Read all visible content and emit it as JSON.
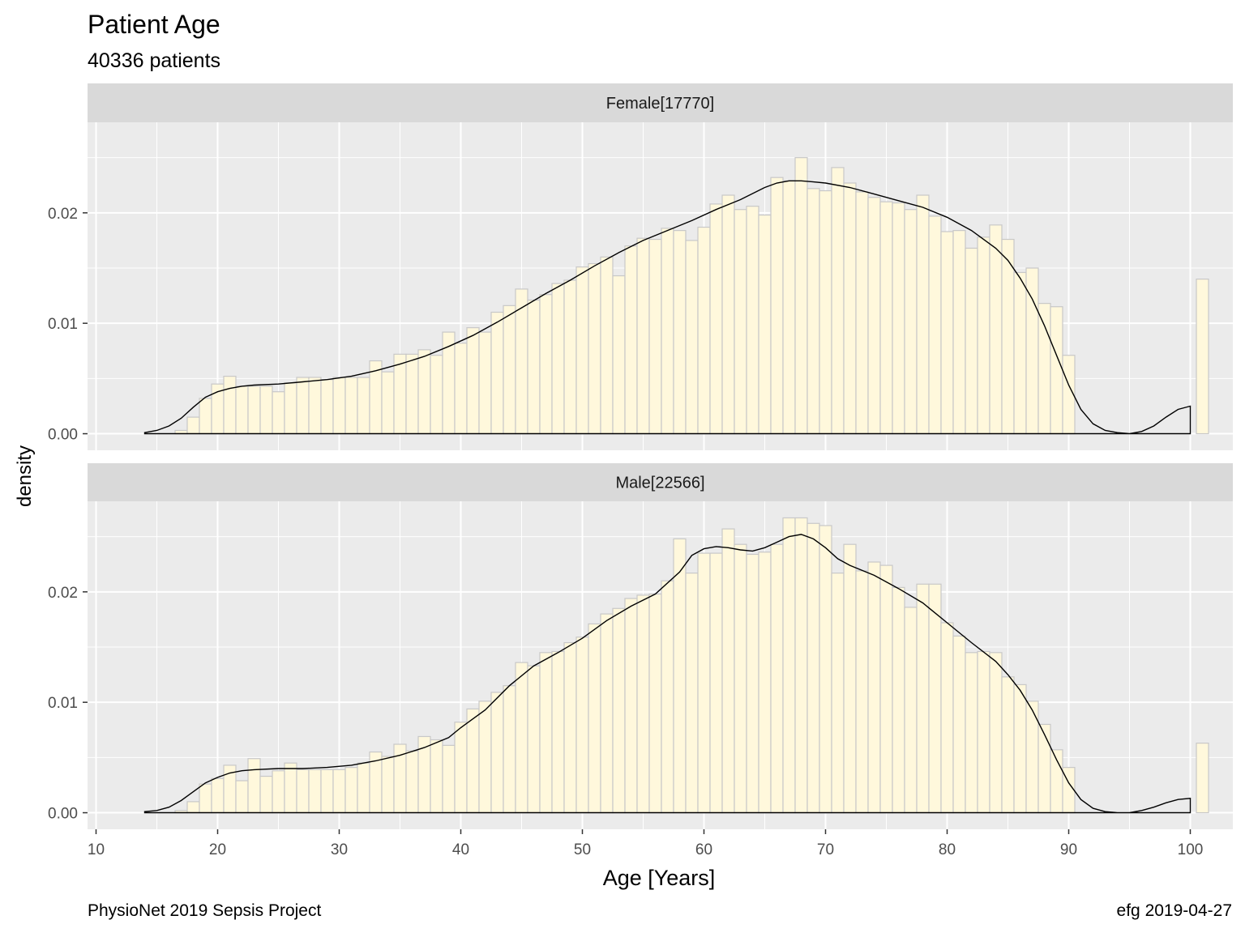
{
  "title": "Patient Age",
  "subtitle": "40336 patients",
  "caption_left": "PhysioNet 2019 Sepsis Project",
  "caption_right": "efg 2019-04-27",
  "colors": {
    "panel_bg": "#ebebeb",
    "strip_bg": "#d9d9d9",
    "bar_fill": "#fff8dc",
    "bar_stroke": "#c8c8c8",
    "grid": "#ffffff",
    "density_line": "#000000"
  },
  "chart_data": {
    "type": "bar",
    "subtype": "histogram-with-density",
    "xlabel": "Age [Years]",
    "ylabel": "density",
    "xlim": [
      9.3,
      103.5
    ],
    "x_ticks": [
      10,
      20,
      30,
      40,
      50,
      60,
      70,
      80,
      90,
      100
    ],
    "x_tick_labels": [
      "10",
      "20",
      "30",
      "40",
      "50",
      "60",
      "70",
      "80",
      "90",
      "100"
    ],
    "y_ticks": [
      0,
      0.01,
      0.02
    ],
    "y_tick_labels": [
      "0.00",
      "0.01",
      "0.02"
    ],
    "grid": true,
    "bin_width": 1,
    "panels": [
      {
        "label": "Female[17770]",
        "ylim": [
          -0.0015,
          0.0282
        ],
        "bins": [
          [
            17,
            0.0003
          ],
          [
            18,
            0.0015
          ],
          [
            19,
            0.0032
          ],
          [
            20,
            0.0045
          ],
          [
            21,
            0.0052
          ],
          [
            22,
            0.0043
          ],
          [
            23,
            0.0043
          ],
          [
            24,
            0.0043
          ],
          [
            25,
            0.0038
          ],
          [
            26,
            0.0046
          ],
          [
            27,
            0.0051
          ],
          [
            28,
            0.0051
          ],
          [
            29,
            0.0049
          ],
          [
            30,
            0.0051
          ],
          [
            31,
            0.0051
          ],
          [
            32,
            0.0051
          ],
          [
            33,
            0.0066
          ],
          [
            34,
            0.0056
          ],
          [
            35,
            0.0072
          ],
          [
            36,
            0.0072
          ],
          [
            37,
            0.0076
          ],
          [
            38,
            0.0071
          ],
          [
            39,
            0.0092
          ],
          [
            40,
            0.0082
          ],
          [
            41,
            0.0096
          ],
          [
            42,
            0.0092
          ],
          [
            43,
            0.011
          ],
          [
            44,
            0.0116
          ],
          [
            45,
            0.0131
          ],
          [
            46,
            0.0121
          ],
          [
            47,
            0.0126
          ],
          [
            48,
            0.0136
          ],
          [
            49,
            0.0139
          ],
          [
            50,
            0.0151
          ],
          [
            51,
            0.0154
          ],
          [
            52,
            0.016
          ],
          [
            53,
            0.0143
          ],
          [
            54,
            0.017
          ],
          [
            55,
            0.0177
          ],
          [
            56,
            0.0176
          ],
          [
            57,
            0.0186
          ],
          [
            58,
            0.0184
          ],
          [
            59,
            0.0175
          ],
          [
            60,
            0.0187
          ],
          [
            61,
            0.0208
          ],
          [
            62,
            0.0216
          ],
          [
            63,
            0.0203
          ],
          [
            64,
            0.0206
          ],
          [
            65,
            0.0198
          ],
          [
            66,
            0.0232
          ],
          [
            67,
            0.0229
          ],
          [
            68,
            0.025
          ],
          [
            69,
            0.0222
          ],
          [
            70,
            0.022
          ],
          [
            71,
            0.0241
          ],
          [
            72,
            0.0227
          ],
          [
            73,
            0.0219
          ],
          [
            74,
            0.0214
          ],
          [
            75,
            0.021
          ],
          [
            76,
            0.0209
          ],
          [
            77,
            0.0203
          ],
          [
            78,
            0.0216
          ],
          [
            79,
            0.0197
          ],
          [
            80,
            0.0183
          ],
          [
            81,
            0.0184
          ],
          [
            82,
            0.0168
          ],
          [
            83,
            0.0178
          ],
          [
            84,
            0.0189
          ],
          [
            85,
            0.0176
          ],
          [
            86,
            0.0146
          ],
          [
            87,
            0.015
          ],
          [
            88,
            0.0118
          ],
          [
            89,
            0.0115
          ],
          [
            90,
            0.0071
          ],
          [
            101,
            0.014
          ]
        ],
        "density": [
          [
            14,
            0.0001
          ],
          [
            15,
            0.0003
          ],
          [
            16,
            0.0007
          ],
          [
            17,
            0.0014
          ],
          [
            18,
            0.0024
          ],
          [
            19,
            0.0033
          ],
          [
            20,
            0.0038
          ],
          [
            21,
            0.0041
          ],
          [
            22,
            0.0043
          ],
          [
            23,
            0.0044
          ],
          [
            25,
            0.0045
          ],
          [
            27,
            0.0047
          ],
          [
            29,
            0.0049
          ],
          [
            31,
            0.0052
          ],
          [
            33,
            0.0057
          ],
          [
            35,
            0.0063
          ],
          [
            37,
            0.007
          ],
          [
            39,
            0.0079
          ],
          [
            41,
            0.0089
          ],
          [
            43,
            0.0101
          ],
          [
            45,
            0.0114
          ],
          [
            47,
            0.0127
          ],
          [
            49,
            0.0139
          ],
          [
            51,
            0.0152
          ],
          [
            53,
            0.0164
          ],
          [
            55,
            0.0175
          ],
          [
            57,
            0.0184
          ],
          [
            59,
            0.0193
          ],
          [
            61,
            0.0203
          ],
          [
            63,
            0.0212
          ],
          [
            65,
            0.0223
          ],
          [
            66,
            0.0227
          ],
          [
            67,
            0.0229
          ],
          [
            68,
            0.0229
          ],
          [
            69,
            0.0228
          ],
          [
            70,
            0.0227
          ],
          [
            72,
            0.0223
          ],
          [
            74,
            0.0217
          ],
          [
            76,
            0.0211
          ],
          [
            78,
            0.0205
          ],
          [
            80,
            0.0196
          ],
          [
            82,
            0.0184
          ],
          [
            84,
            0.0168
          ],
          [
            85,
            0.0157
          ],
          [
            86,
            0.0141
          ],
          [
            87,
            0.0122
          ],
          [
            88,
            0.0098
          ],
          [
            89,
            0.0071
          ],
          [
            90,
            0.0044
          ],
          [
            91,
            0.0022
          ],
          [
            92,
            0.0009
          ],
          [
            93,
            0.0003
          ],
          [
            94,
            0.0001
          ],
          [
            95,
            0.0
          ],
          [
            96,
            0.0002
          ],
          [
            97,
            0.0007
          ],
          [
            98,
            0.0015
          ],
          [
            99,
            0.0022
          ],
          [
            100,
            0.0025
          ]
        ]
      },
      {
        "label": "Male[22566]",
        "ylim": [
          -0.0015,
          0.0282
        ],
        "bins": [
          [
            17,
            0.0002
          ],
          [
            18,
            0.001
          ],
          [
            19,
            0.0026
          ],
          [
            20,
            0.0031
          ],
          [
            21,
            0.0043
          ],
          [
            22,
            0.0029
          ],
          [
            23,
            0.0049
          ],
          [
            24,
            0.0033
          ],
          [
            25,
            0.0038
          ],
          [
            26,
            0.0045
          ],
          [
            27,
            0.0039
          ],
          [
            28,
            0.0039
          ],
          [
            29,
            0.0039
          ],
          [
            30,
            0.0039
          ],
          [
            31,
            0.0041
          ],
          [
            32,
            0.0045
          ],
          [
            33,
            0.0055
          ],
          [
            34,
            0.0051
          ],
          [
            35,
            0.0062
          ],
          [
            36,
            0.0056
          ],
          [
            37,
            0.0069
          ],
          [
            38,
            0.0066
          ],
          [
            39,
            0.0061
          ],
          [
            40,
            0.0082
          ],
          [
            41,
            0.0094
          ],
          [
            42,
            0.0101
          ],
          [
            43,
            0.0109
          ],
          [
            44,
            0.0115
          ],
          [
            45,
            0.0136
          ],
          [
            46,
            0.0133
          ],
          [
            47,
            0.0145
          ],
          [
            48,
            0.0146
          ],
          [
            49,
            0.0154
          ],
          [
            50,
            0.0159
          ],
          [
            51,
            0.0171
          ],
          [
            52,
            0.018
          ],
          [
            53,
            0.0185
          ],
          [
            54,
            0.0194
          ],
          [
            55,
            0.0197
          ],
          [
            56,
            0.0198
          ],
          [
            57,
            0.021
          ],
          [
            58,
            0.0248
          ],
          [
            59,
            0.0217
          ],
          [
            60,
            0.0235
          ],
          [
            61,
            0.0235
          ],
          [
            62,
            0.0257
          ],
          [
            63,
            0.0243
          ],
          [
            64,
            0.0234
          ],
          [
            65,
            0.0236
          ],
          [
            66,
            0.0243
          ],
          [
            67,
            0.0267
          ],
          [
            68,
            0.0267
          ],
          [
            69,
            0.0262
          ],
          [
            70,
            0.026
          ],
          [
            71,
            0.0217
          ],
          [
            72,
            0.0243
          ],
          [
            73,
            0.0219
          ],
          [
            74,
            0.0227
          ],
          [
            75,
            0.0224
          ],
          [
            76,
            0.0204
          ],
          [
            77,
            0.0186
          ],
          [
            78,
            0.0207
          ],
          [
            79,
            0.0207
          ],
          [
            80,
            0.0172
          ],
          [
            81,
            0.016
          ],
          [
            82,
            0.0145
          ],
          [
            83,
            0.0146
          ],
          [
            84,
            0.0145
          ],
          [
            85,
            0.0123
          ],
          [
            86,
            0.0116
          ],
          [
            87,
            0.0101
          ],
          [
            88,
            0.008
          ],
          [
            89,
            0.0057
          ],
          [
            90,
            0.0041
          ],
          [
            101,
            0.0063
          ]
        ],
        "density": [
          [
            14,
            0.0001
          ],
          [
            15,
            0.0002
          ],
          [
            16,
            0.0005
          ],
          [
            17,
            0.0011
          ],
          [
            18,
            0.0019
          ],
          [
            19,
            0.0027
          ],
          [
            20,
            0.0032
          ],
          [
            21,
            0.0036
          ],
          [
            22,
            0.0038
          ],
          [
            23,
            0.0039
          ],
          [
            25,
            0.004
          ],
          [
            27,
            0.004
          ],
          [
            29,
            0.0041
          ],
          [
            31,
            0.0043
          ],
          [
            33,
            0.0047
          ],
          [
            35,
            0.0052
          ],
          [
            37,
            0.0059
          ],
          [
            39,
            0.0068
          ],
          [
            40,
            0.0077
          ],
          [
            42,
            0.0093
          ],
          [
            44,
            0.0115
          ],
          [
            46,
            0.0133
          ],
          [
            48,
            0.0145
          ],
          [
            50,
            0.0158
          ],
          [
            52,
            0.0174
          ],
          [
            54,
            0.0187
          ],
          [
            56,
            0.0198
          ],
          [
            58,
            0.0218
          ],
          [
            59,
            0.0233
          ],
          [
            60,
            0.0239
          ],
          [
            61,
            0.0241
          ],
          [
            62,
            0.024
          ],
          [
            63,
            0.0238
          ],
          [
            64,
            0.0237
          ],
          [
            65,
            0.024
          ],
          [
            66,
            0.0245
          ],
          [
            67,
            0.025
          ],
          [
            68,
            0.0252
          ],
          [
            69,
            0.0248
          ],
          [
            70,
            0.024
          ],
          [
            71,
            0.023
          ],
          [
            72,
            0.0224
          ],
          [
            74,
            0.0215
          ],
          [
            76,
            0.0203
          ],
          [
            78,
            0.019
          ],
          [
            80,
            0.0172
          ],
          [
            82,
            0.0154
          ],
          [
            84,
            0.0137
          ],
          [
            85,
            0.0125
          ],
          [
            86,
            0.0111
          ],
          [
            87,
            0.0093
          ],
          [
            88,
            0.0071
          ],
          [
            89,
            0.0048
          ],
          [
            90,
            0.0027
          ],
          [
            91,
            0.0012
          ],
          [
            92,
            0.0004
          ],
          [
            93,
            0.0001
          ],
          [
            94,
            0.0
          ],
          [
            95,
            0.0
          ],
          [
            96,
            0.0002
          ],
          [
            97,
            0.0005
          ],
          [
            98,
            0.0009
          ],
          [
            99,
            0.0012
          ],
          [
            100,
            0.0013
          ]
        ]
      }
    ]
  }
}
